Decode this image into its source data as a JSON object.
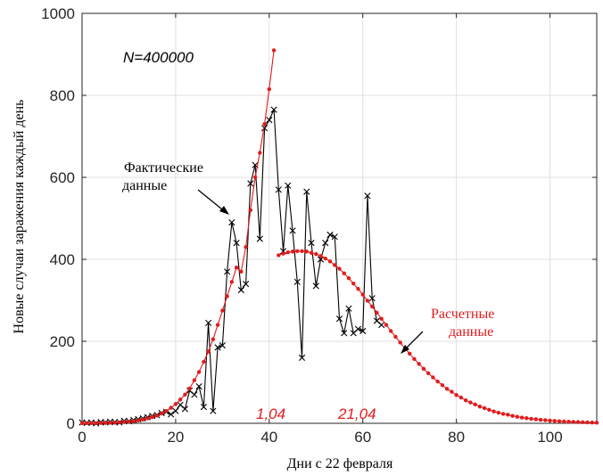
{
  "chart_data": {
    "type": "line",
    "xlabel": "Дни с 22 февраля",
    "ylabel": "Новые случаи заражения каждый день",
    "xlim": [
      0,
      110
    ],
    "ylim": [
      0,
      1000
    ],
    "xticks": [
      0,
      20,
      40,
      60,
      80,
      100
    ],
    "yticks": [
      0,
      200,
      400,
      600,
      800,
      1000
    ],
    "grid": true,
    "annotations": {
      "population": "N=400000",
      "actual_line1": "Фактические",
      "actual_line2": "данные",
      "model_line1": "Расчетные",
      "model_line2": "данные",
      "date1": "1,04",
      "date2": "21,04"
    },
    "series": [
      {
        "name": "Фактические данные",
        "color": "#000000",
        "marker": "x",
        "x": [
          0,
          1,
          2,
          3,
          4,
          5,
          6,
          7,
          8,
          9,
          10,
          11,
          12,
          13,
          14,
          15,
          16,
          17,
          18,
          19,
          20,
          21,
          22,
          23,
          24,
          25,
          26,
          27,
          28,
          29,
          30,
          31,
          32,
          33,
          34,
          35,
          36,
          37,
          38,
          39,
          40,
          41,
          42,
          43,
          44,
          45,
          46,
          47,
          48,
          49,
          50,
          51,
          52,
          53,
          54,
          55,
          56,
          57,
          58,
          59,
          60,
          61,
          62,
          63,
          64
        ],
        "y": [
          2,
          1,
          2,
          0,
          3,
          2,
          4,
          3,
          2,
          6,
          5,
          8,
          10,
          12,
          15,
          18,
          20,
          25,
          28,
          22,
          30,
          45,
          35,
          80,
          70,
          90,
          40,
          245,
          30,
          185,
          190,
          370,
          490,
          440,
          325,
          340,
          585,
          630,
          450,
          720,
          740,
          765,
          570,
          420,
          580,
          470,
          345,
          160,
          565,
          440,
          335,
          400,
          440,
          460,
          455,
          255,
          220,
          280,
          220,
          230,
          225,
          555,
          305,
          250,
          240
        ]
      },
      {
        "name": "Расчетные данные (1)",
        "color": "#e31a1c",
        "marker": "dot",
        "x": [
          0,
          1,
          2,
          3,
          4,
          5,
          6,
          7,
          8,
          9,
          10,
          11,
          12,
          13,
          14,
          15,
          16,
          17,
          18,
          19,
          20,
          21,
          22,
          23,
          24,
          25,
          26,
          27,
          28,
          29,
          30,
          31,
          32,
          33,
          34,
          35,
          36,
          37,
          38,
          39,
          40,
          41
        ],
        "y": [
          0.2,
          0.3,
          0.4,
          0.5,
          0.7,
          0.9,
          1.2,
          1.6,
          2.2,
          3,
          4,
          5,
          7,
          9,
          12,
          15,
          19,
          24,
          30,
          38,
          47,
          58,
          70,
          85,
          105,
          125,
          150,
          175,
          205,
          240,
          275,
          310,
          345,
          380,
          370,
          430,
          520,
          600,
          660,
          730,
          815,
          910
        ]
      },
      {
        "name": "Расчетные данные (2)",
        "color": "#e31a1c",
        "marker": "dot",
        "x": [
          42,
          43,
          44,
          45,
          46,
          47,
          48,
          49,
          50,
          51,
          52,
          53,
          54,
          55,
          56,
          57,
          58,
          59,
          60,
          61,
          62,
          63,
          64,
          65,
          66,
          67,
          68,
          69,
          70,
          71,
          72,
          73,
          74,
          75,
          76,
          77,
          78,
          79,
          80,
          81,
          82,
          83,
          84,
          85,
          86,
          87,
          88,
          89,
          90,
          91,
          92,
          93,
          94,
          95,
          96,
          97,
          98,
          99,
          100,
          101,
          102,
          103,
          104,
          105,
          106,
          107,
          108,
          109,
          110
        ],
        "y": [
          410,
          414,
          417,
          419,
          420,
          420,
          419,
          416,
          413,
          408,
          402,
          395,
          386,
          377,
          366,
          354,
          341,
          328,
          314,
          299,
          285,
          270,
          255,
          240,
          225,
          211,
          197,
          183,
          170,
          157,
          145,
          133,
          122,
          112,
          102,
          93,
          84,
          77,
          69,
          63,
          56,
          51,
          46,
          41,
          37,
          33,
          29,
          26,
          23,
          21,
          18,
          16,
          14,
          12.5,
          11,
          9.8,
          8.6,
          7.6,
          6.7,
          5.9,
          5.1,
          4.5,
          3.9,
          3.4,
          3,
          2.6,
          2.2,
          1.9,
          1.6
        ]
      }
    ]
  }
}
